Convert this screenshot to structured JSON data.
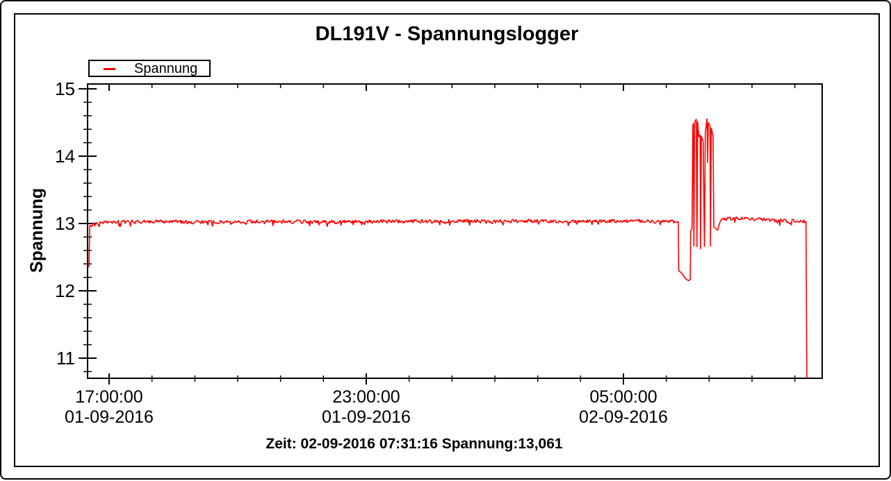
{
  "window": {
    "background": "#ffffff",
    "border_color": "#000000"
  },
  "chart": {
    "title": "DL191V - Spannungslogger",
    "legend": {
      "label": "Spannung",
      "line_color": "#ff0000"
    },
    "y_axis": {
      "label": "Spannung",
      "ticks": [
        15,
        14,
        13,
        12,
        11
      ],
      "minor_step": 0.2
    },
    "x_axis": {
      "major_ticks": [
        {
          "time": "17:00:00",
          "date": "01-09-2016",
          "hour": 17
        },
        {
          "time": "23:00:00",
          "date": "01-09-2016",
          "hour": 23
        },
        {
          "time": "05:00:00",
          "date": "02-09-2016",
          "hour": 29
        }
      ],
      "minor_step_hours": 1
    },
    "status_line": "Zeit: 02-09-2016 07:31:16 Spannung:13,061"
  },
  "chart_data": {
    "type": "line",
    "title": "DL191V - Spannungslogger",
    "xlabel": "Zeit",
    "ylabel": "Spannung",
    "x_unit": "hours since 2016-09-01 00:00",
    "xlim": [
      16.5,
      33.64
    ],
    "ylim": [
      10.7,
      15.07
    ],
    "grid": false,
    "legend_position": "top-left",
    "line_color": "#ff0000",
    "noise_amplitude": 0.028,
    "x_major_tick_hours": [
      17,
      23,
      29
    ],
    "x_tick_labels": [
      "17:00:00\n01-09-2016",
      "23:00:00\n01-09-2016",
      "05:00:00\n02-09-2016"
    ],
    "y_ticks": [
      11,
      12,
      13,
      14,
      15
    ],
    "cursor_readout": {
      "time": "02-09-2016 07:31:16",
      "value": "13,061"
    },
    "series": [
      {
        "name": "Spannung",
        "color": "#ff0000",
        "points": [
          [
            16.53,
            12.35
          ],
          [
            16.55,
            12.97
          ],
          [
            16.7,
            13.01
          ],
          [
            17.0,
            13.02
          ],
          [
            18.0,
            13.03
          ],
          [
            19.0,
            13.02
          ],
          [
            20.0,
            13.03
          ],
          [
            21.0,
            13.03
          ],
          [
            22.0,
            13.02
          ],
          [
            23.0,
            13.03
          ],
          [
            24.0,
            13.03
          ],
          [
            25.0,
            13.04
          ],
          [
            26.0,
            13.03
          ],
          [
            27.0,
            13.04
          ],
          [
            28.0,
            13.03
          ],
          [
            29.0,
            13.04
          ],
          [
            30.0,
            13.03
          ],
          [
            30.28,
            13.03
          ],
          [
            30.29,
            12.3
          ],
          [
            30.36,
            12.26
          ],
          [
            30.45,
            12.18
          ],
          [
            30.52,
            12.15
          ],
          [
            30.56,
            12.17
          ],
          [
            30.57,
            12.9
          ],
          [
            30.6,
            12.92
          ],
          [
            30.62,
            14.45
          ],
          [
            30.63,
            14.49
          ],
          [
            30.645,
            12.66
          ],
          [
            30.66,
            14.5
          ],
          [
            30.7,
            14.55
          ],
          [
            30.715,
            12.65
          ],
          [
            30.73,
            14.52
          ],
          [
            30.76,
            14.28
          ],
          [
            30.79,
            14.32
          ],
          [
            30.8,
            12.62
          ],
          [
            30.82,
            14.3
          ],
          [
            30.86,
            14.22
          ],
          [
            30.89,
            12.65
          ],
          [
            30.91,
            14.35
          ],
          [
            30.95,
            14.56
          ],
          [
            30.965,
            13.9
          ],
          [
            30.98,
            14.5
          ],
          [
            31.02,
            14.45
          ],
          [
            31.03,
            12.66
          ],
          [
            31.05,
            14.42
          ],
          [
            31.09,
            14.3
          ],
          [
            31.11,
            12.95
          ],
          [
            31.16,
            12.92
          ],
          [
            31.2,
            12.9
          ],
          [
            31.24,
            13.0
          ],
          [
            31.28,
            13.05
          ],
          [
            31.45,
            13.08
          ],
          [
            31.8,
            13.07
          ],
          [
            32.2,
            13.06
          ],
          [
            32.7,
            13.04
          ],
          [
            33.26,
            13.03
          ],
          [
            33.28,
            10.7
          ]
        ]
      }
    ]
  }
}
